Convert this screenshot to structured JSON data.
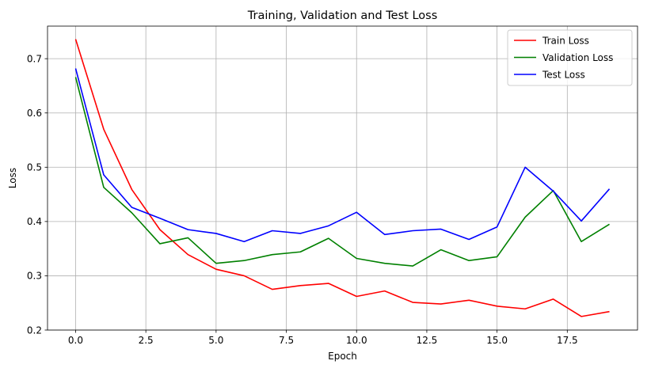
{
  "chart_data": {
    "type": "line",
    "title": "Training, Validation and Test Loss",
    "xlabel": "Epoch",
    "ylabel": "Loss",
    "x": [
      0,
      1,
      2,
      3,
      4,
      5,
      6,
      7,
      8,
      9,
      10,
      11,
      12,
      13,
      14,
      15,
      16,
      17,
      18,
      19
    ],
    "xlim": [
      -1,
      20
    ],
    "ylim": [
      0.2,
      0.76
    ],
    "xticks": [
      0.0,
      2.5,
      5.0,
      7.5,
      10.0,
      12.5,
      15.0,
      17.5
    ],
    "xtick_labels": [
      "0.0",
      "2.5",
      "5.0",
      "7.5",
      "10.0",
      "12.5",
      "15.0",
      "17.5"
    ],
    "yticks": [
      0.2,
      0.3,
      0.4,
      0.5,
      0.6,
      0.7
    ],
    "ytick_labels": [
      "0.2",
      "0.3",
      "0.4",
      "0.5",
      "0.6",
      "0.7"
    ],
    "grid": true,
    "legend_position": "top-right",
    "series": [
      {
        "name": "Train Loss",
        "color": "#ff0000",
        "values": [
          0.736,
          0.57,
          0.459,
          0.385,
          0.339,
          0.312,
          0.3,
          0.275,
          0.282,
          0.286,
          0.262,
          0.272,
          0.251,
          0.248,
          0.255,
          0.244,
          0.239,
          0.257,
          0.225,
          0.234
        ]
      },
      {
        "name": "Validation Loss",
        "color": "#008000",
        "values": [
          0.666,
          0.463,
          0.416,
          0.359,
          0.37,
          0.323,
          0.328,
          0.339,
          0.344,
          0.369,
          0.332,
          0.323,
          0.318,
          0.348,
          0.328,
          0.335,
          0.408,
          0.457,
          0.363,
          0.395
        ]
      },
      {
        "name": "Test Loss",
        "color": "#0000ff",
        "values": [
          0.682,
          0.486,
          0.426,
          0.406,
          0.385,
          0.378,
          0.363,
          0.383,
          0.378,
          0.392,
          0.417,
          0.376,
          0.383,
          0.386,
          0.367,
          0.39,
          0.5,
          0.456,
          0.401,
          0.46
        ]
      }
    ]
  }
}
